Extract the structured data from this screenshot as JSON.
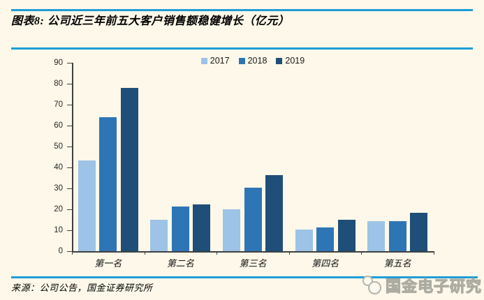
{
  "page": {
    "title": "图表8: 公司近三年前五大客户销售额稳健增长（亿元）",
    "source": "来源：公司公告，国金证券研究所",
    "watermark_text": "国金电子研究"
  },
  "colors": {
    "background": "#FDF8E9",
    "rule_blue": "#1E9CD8",
    "axis": "#404040",
    "series_2017": "#9DC3E6",
    "series_2018": "#2E75B6",
    "series_2019": "#1F4E79"
  },
  "chart_data": {
    "type": "bar",
    "title": "图表8: 公司近三年前五大客户销售额稳健增长（亿元）",
    "unit": "亿元",
    "categories": [
      "第一名",
      "第二名",
      "第三名",
      "第四名",
      "第五名"
    ],
    "series": [
      {
        "name": "2017",
        "color": "#9DC3E6",
        "values": [
          43.5,
          15,
          20,
          10.5,
          14.5
        ]
      },
      {
        "name": "2018",
        "color": "#2E75B6",
        "values": [
          64,
          21.5,
          30.5,
          11.5,
          14.3
        ]
      },
      {
        "name": "2019",
        "color": "#1F4E79",
        "values": [
          78,
          22.5,
          36.5,
          15,
          18.5
        ]
      }
    ],
    "ylim": [
      0,
      90
    ],
    "ytick_step": 10,
    "yticks": [
      0,
      10,
      20,
      30,
      40,
      50,
      60,
      70,
      80,
      90
    ],
    "grid": false,
    "legend_position": "top-center"
  }
}
